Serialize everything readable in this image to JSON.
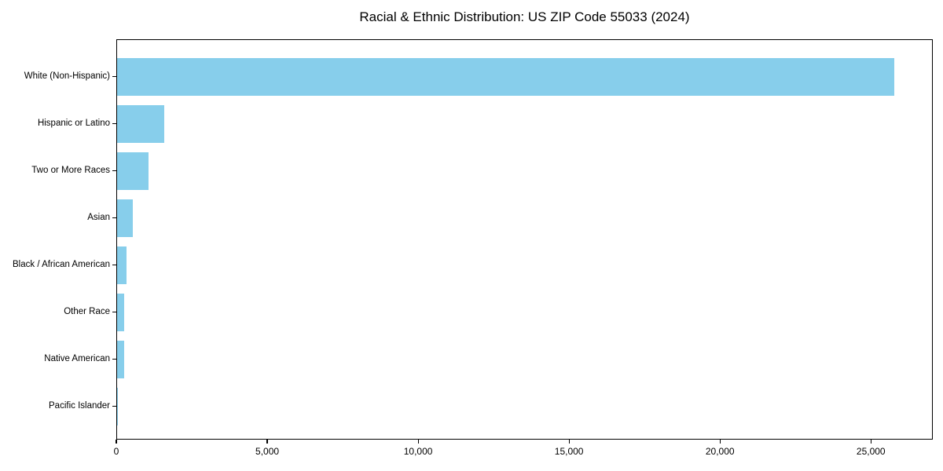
{
  "title": "Racial & Ethnic Distribution: US ZIP Code 55033 (2024)",
  "chart_data": {
    "type": "bar",
    "orientation": "horizontal",
    "title": "Racial & Ethnic Distribution: US ZIP Code 55033 (2024)",
    "categories": [
      "White (Non-Hispanic)",
      "Hispanic or Latino",
      "Two or More Races",
      "Asian",
      "Black / African American",
      "Other Race",
      "Native American",
      "Pacific Islander"
    ],
    "values": [
      25760,
      1550,
      1050,
      520,
      300,
      240,
      225,
      25
    ],
    "xlabel": "",
    "ylabel": "",
    "xlim": [
      0,
      27050
    ],
    "x_ticks": [
      0,
      5000,
      10000,
      15000,
      20000,
      25000
    ],
    "x_tick_labels": [
      "0",
      "5,000",
      "10,000",
      "15,000",
      "20,000",
      "25,000"
    ],
    "bar_color": "#87CEEB",
    "spine_color": "#000000",
    "grid": false,
    "legend": null
  }
}
